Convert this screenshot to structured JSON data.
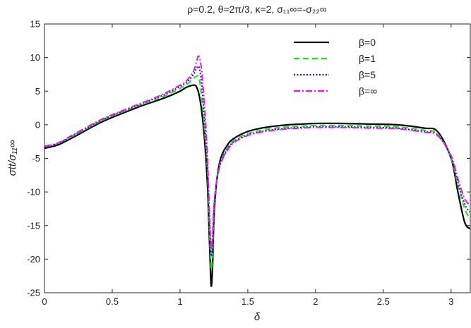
{
  "chart_data": {
    "type": "line",
    "title": "ρ=0.2,  θ=2π/3,  κ=2,  σ₁₁∞=-σ₂₂∞",
    "xlabel": "δ",
    "ylabel": "σtt/σ₁₁∞",
    "xlim": [
      0,
      3.1416
    ],
    "ylim": [
      -25,
      15
    ],
    "xticks": [
      "0",
      "0.5",
      "1",
      "1.5",
      "2",
      "2.5",
      "3"
    ],
    "xtick_values": [
      0,
      0.5,
      1,
      1.5,
      2,
      2.5,
      3
    ],
    "yticks": [
      "15",
      "10",
      "5",
      "0",
      "-5",
      "-10",
      "-15",
      "-20",
      "-25"
    ],
    "ytick_values": [
      15,
      10,
      5,
      0,
      -5,
      -10,
      -15,
      -20,
      -25
    ],
    "grid": false,
    "legend_position": "top-right",
    "x": [
      0,
      0.1,
      0.2,
      0.3,
      0.4,
      0.5,
      0.6,
      0.7,
      0.8,
      0.9,
      1.0,
      1.05,
      1.1,
      1.12,
      1.14,
      1.16,
      1.18,
      1.2,
      1.21,
      1.22,
      1.23,
      1.24,
      1.25,
      1.27,
      1.3,
      1.35,
      1.4,
      1.5,
      1.6,
      1.7,
      1.8,
      1.9,
      2.0,
      2.2,
      2.4,
      2.6,
      2.8,
      2.9,
      3.0,
      3.05,
      3.1,
      3.14
    ],
    "series": [
      {
        "name": "β=0",
        "color": "#000000",
        "dash": "solid",
        "values": [
          -3.5,
          -3.0,
          -2.0,
          -0.9,
          0.2,
          1.1,
          1.9,
          2.7,
          3.4,
          4.1,
          5.0,
          5.6,
          5.9,
          5.7,
          4.5,
          2.0,
          -2.0,
          -8.0,
          -13.0,
          -19.0,
          -24.0,
          -21.0,
          -14.0,
          -8.5,
          -5.0,
          -3.0,
          -2.0,
          -1.0,
          -0.5,
          -0.2,
          0.0,
          0.1,
          0.2,
          0.2,
          0.1,
          0.0,
          -0.5,
          -1.0,
          -5.0,
          -10.0,
          -14.5,
          -15.5
        ]
      },
      {
        "name": "β=1",
        "color": "#22dd22",
        "dash": "8,5",
        "values": [
          -3.3,
          -2.8,
          -1.8,
          -0.7,
          0.4,
          1.3,
          2.1,
          2.9,
          3.6,
          4.4,
          5.4,
          6.0,
          6.9,
          7.2,
          7.0,
          4.0,
          -0.5,
          -6.0,
          -11.0,
          -17.0,
          -21.5,
          -19.0,
          -13.0,
          -8.5,
          -5.5,
          -3.4,
          -2.3,
          -1.3,
          -0.8,
          -0.5,
          -0.3,
          -0.2,
          -0.1,
          -0.1,
          -0.2,
          -0.3,
          -0.8,
          -1.3,
          -5.0,
          -9.0,
          -12.5,
          -14.0
        ]
      },
      {
        "name": "β=5",
        "color": "#1515cc",
        "dash": "2,2.5",
        "values": [
          -3.3,
          -2.8,
          -1.7,
          -0.6,
          0.5,
          1.4,
          2.2,
          3.0,
          3.8,
          4.6,
          5.7,
          6.3,
          7.5,
          8.3,
          8.6,
          6.0,
          1.0,
          -5.0,
          -10.0,
          -15.5,
          -19.5,
          -17.5,
          -12.5,
          -8.5,
          -5.7,
          -3.6,
          -2.5,
          -1.5,
          -1.0,
          -0.7,
          -0.5,
          -0.4,
          -0.3,
          -0.3,
          -0.4,
          -0.5,
          -1.0,
          -1.5,
          -4.8,
          -8.5,
          -11.8,
          -13.0
        ]
      },
      {
        "name": "β=∞",
        "color": "#ee11ee",
        "dash": "9,3,2,3",
        "values": [
          -3.2,
          -2.7,
          -1.6,
          -0.5,
          0.6,
          1.5,
          2.3,
          3.1,
          3.9,
          4.8,
          5.9,
          6.6,
          8.0,
          9.3,
          10.2,
          8.0,
          3.0,
          -3.5,
          -9.0,
          -14.5,
          -18.5,
          -16.5,
          -12.0,
          -8.5,
          -5.8,
          -3.8,
          -2.6,
          -1.6,
          -1.1,
          -0.8,
          -0.6,
          -0.5,
          -0.4,
          -0.4,
          -0.5,
          -0.6,
          -1.1,
          -1.6,
          -4.6,
          -8.0,
          -11.0,
          -12.0
        ]
      }
    ]
  }
}
